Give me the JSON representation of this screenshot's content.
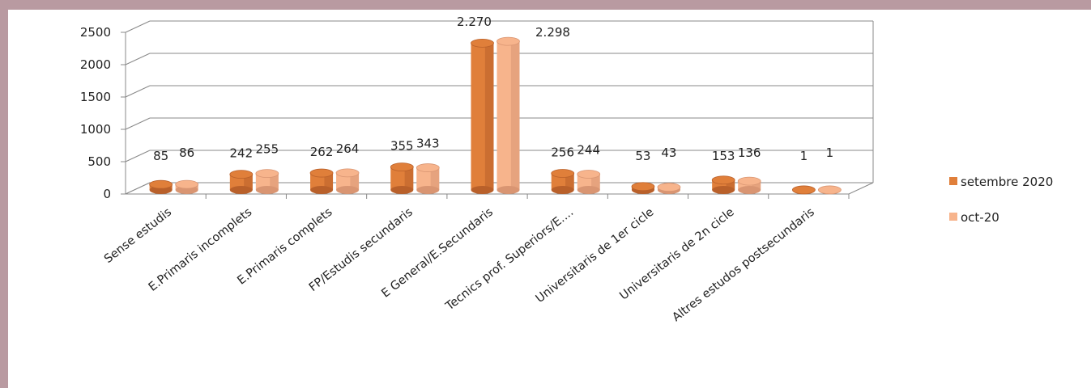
{
  "colors": {
    "series1": "#e07f3a",
    "series1_dark": "#b9602a",
    "series2": "#f7b48c",
    "series2_dark": "#d99572",
    "grid": "#888888",
    "background": "#b99aa1"
  },
  "chart_data": {
    "type": "bar",
    "title": "",
    "xlabel": "",
    "ylabel": "",
    "ylim": [
      0,
      2500
    ],
    "yticks": [
      0,
      500,
      1000,
      1500,
      2000,
      2500
    ],
    "grid": true,
    "legend_position": "right",
    "categories": [
      "Sense estudis",
      "E.Primaris incomplets",
      "E.Primaris complets",
      "FP/Estudis secundaris",
      "E General/E.Secundaris",
      "Tecnics prof. Superiors/E....",
      "Universitaris de 1er cicle",
      "Universitaris de 2n cicle",
      "Altres estudos postsecundaris"
    ],
    "series": [
      {
        "name": "setembre 2020",
        "values": [
          85,
          242,
          262,
          355,
          2270,
          256,
          53,
          153,
          1
        ],
        "labels": [
          "85",
          "242",
          "262",
          "355",
          "2.270",
          "256",
          "53",
          "153",
          "1"
        ]
      },
      {
        "name": "oct-20",
        "values": [
          86,
          255,
          264,
          343,
          2298,
          244,
          43,
          136,
          1
        ],
        "labels": [
          "86",
          "255",
          "264",
          "343",
          "2.298",
          "244",
          "43",
          "136",
          "1"
        ]
      }
    ]
  }
}
